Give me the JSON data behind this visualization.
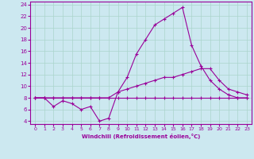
{
  "xlabel": "Windchill (Refroidissement éolien,°C)",
  "background_color": "#cce8f0",
  "grid_color": "#aad4cc",
  "line_color": "#990099",
  "xlim": [
    -0.5,
    23.5
  ],
  "ylim": [
    3.5,
    24.5
  ],
  "xticks": [
    0,
    1,
    2,
    3,
    4,
    5,
    6,
    7,
    8,
    9,
    10,
    11,
    12,
    13,
    14,
    15,
    16,
    17,
    18,
    19,
    20,
    21,
    22,
    23
  ],
  "yticks": [
    4,
    6,
    8,
    10,
    12,
    14,
    16,
    18,
    20,
    22,
    24
  ],
  "line1_x": [
    0,
    1,
    2,
    3,
    4,
    5,
    6,
    7,
    8,
    9,
    10,
    11,
    12,
    13,
    14,
    15,
    16,
    17,
    18,
    19,
    20,
    21,
    22,
    23
  ],
  "line1_y": [
    8,
    8,
    6.5,
    7.5,
    7,
    6,
    6.5,
    4,
    4.5,
    9,
    11.5,
    15.5,
    18,
    20.5,
    21.5,
    22.5,
    23.5,
    17,
    13.5,
    11,
    9.5,
    8.5,
    8,
    8
  ],
  "line2_x": [
    0,
    1,
    2,
    3,
    4,
    5,
    6,
    7,
    8,
    9,
    10,
    11,
    12,
    13,
    14,
    15,
    16,
    17,
    18,
    19,
    20,
    21,
    22,
    23
  ],
  "line2_y": [
    8,
    8,
    8,
    8,
    8,
    8,
    8,
    8,
    8,
    9,
    9.5,
    10,
    10.5,
    11,
    11.5,
    11.5,
    12,
    12.5,
    13,
    13,
    11,
    9.5,
    9,
    8.5
  ],
  "line3_x": [
    0,
    1,
    2,
    3,
    4,
    5,
    6,
    7,
    8,
    9,
    10,
    11,
    12,
    13,
    14,
    15,
    16,
    17,
    18,
    19,
    20,
    21,
    22,
    23
  ],
  "line3_y": [
    8,
    8,
    8,
    8,
    8,
    8,
    8,
    8,
    8,
    8,
    8,
    8,
    8,
    8,
    8,
    8,
    8,
    8,
    8,
    8,
    8,
    8,
    8,
    8
  ]
}
